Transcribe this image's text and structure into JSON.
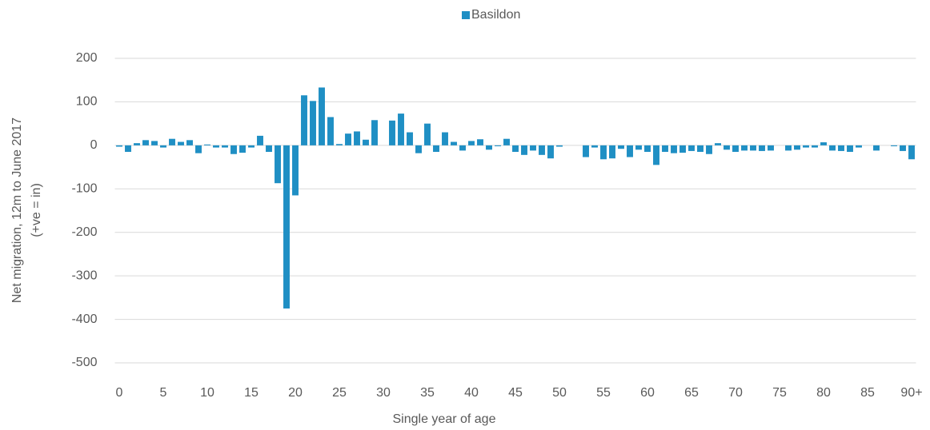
{
  "chart_data": {
    "type": "bar",
    "xlabel": "Single year of age",
    "ylabel": [
      "Net migration, 12m to June 2017",
      "(+ve = in)"
    ],
    "categories": [
      "0",
      null,
      null,
      null,
      null,
      "5",
      null,
      null,
      null,
      null,
      "10",
      null,
      null,
      null,
      null,
      "15",
      null,
      null,
      null,
      null,
      "20",
      null,
      null,
      null,
      null,
      "25",
      null,
      null,
      null,
      null,
      "30",
      null,
      null,
      null,
      null,
      "35",
      null,
      null,
      null,
      null,
      "40",
      null,
      null,
      null,
      null,
      "45",
      null,
      null,
      null,
      null,
      "50",
      null,
      null,
      null,
      null,
      "55",
      null,
      null,
      null,
      null,
      "60",
      null,
      null,
      null,
      null,
      "65",
      null,
      null,
      null,
      null,
      "70",
      null,
      null,
      null,
      null,
      "75",
      null,
      null,
      null,
      null,
      "80",
      null,
      null,
      null,
      null,
      "85",
      null,
      null,
      null,
      null,
      "90+"
    ],
    "series": [
      {
        "name": "Basildon",
        "color": "#1f8fc4",
        "values": [
          -3,
          -15,
          5,
          12,
          10,
          -5,
          15,
          8,
          12,
          -18,
          2,
          -5,
          -5,
          -20,
          -17,
          -5,
          22,
          -15,
          -87,
          -375,
          -115,
          115,
          102,
          133,
          65,
          3,
          27,
          32,
          13,
          58,
          0,
          57,
          73,
          30,
          -18,
          50,
          -15,
          30,
          8,
          -12,
          10,
          14,
          -10,
          -2,
          15,
          -15,
          -22,
          -12,
          -22,
          -30,
          -3,
          0,
          0,
          -27,
          -5,
          -32,
          -30,
          -8,
          -27,
          -10,
          -15,
          -45,
          -15,
          -18,
          -17,
          -13,
          -15,
          -20,
          5,
          -10,
          -15,
          -12,
          -12,
          -13,
          -12,
          0,
          -12,
          -10,
          -5,
          -5,
          7,
          -12,
          -13,
          -15,
          -5,
          0,
          -12,
          0,
          -2,
          -13,
          -32
        ]
      }
    ],
    "ylim": [
      -500,
      200
    ],
    "yticks": [
      -500,
      -400,
      -300,
      -200,
      -100,
      0,
      100,
      200
    ],
    "grid": true,
    "legend": "top"
  }
}
